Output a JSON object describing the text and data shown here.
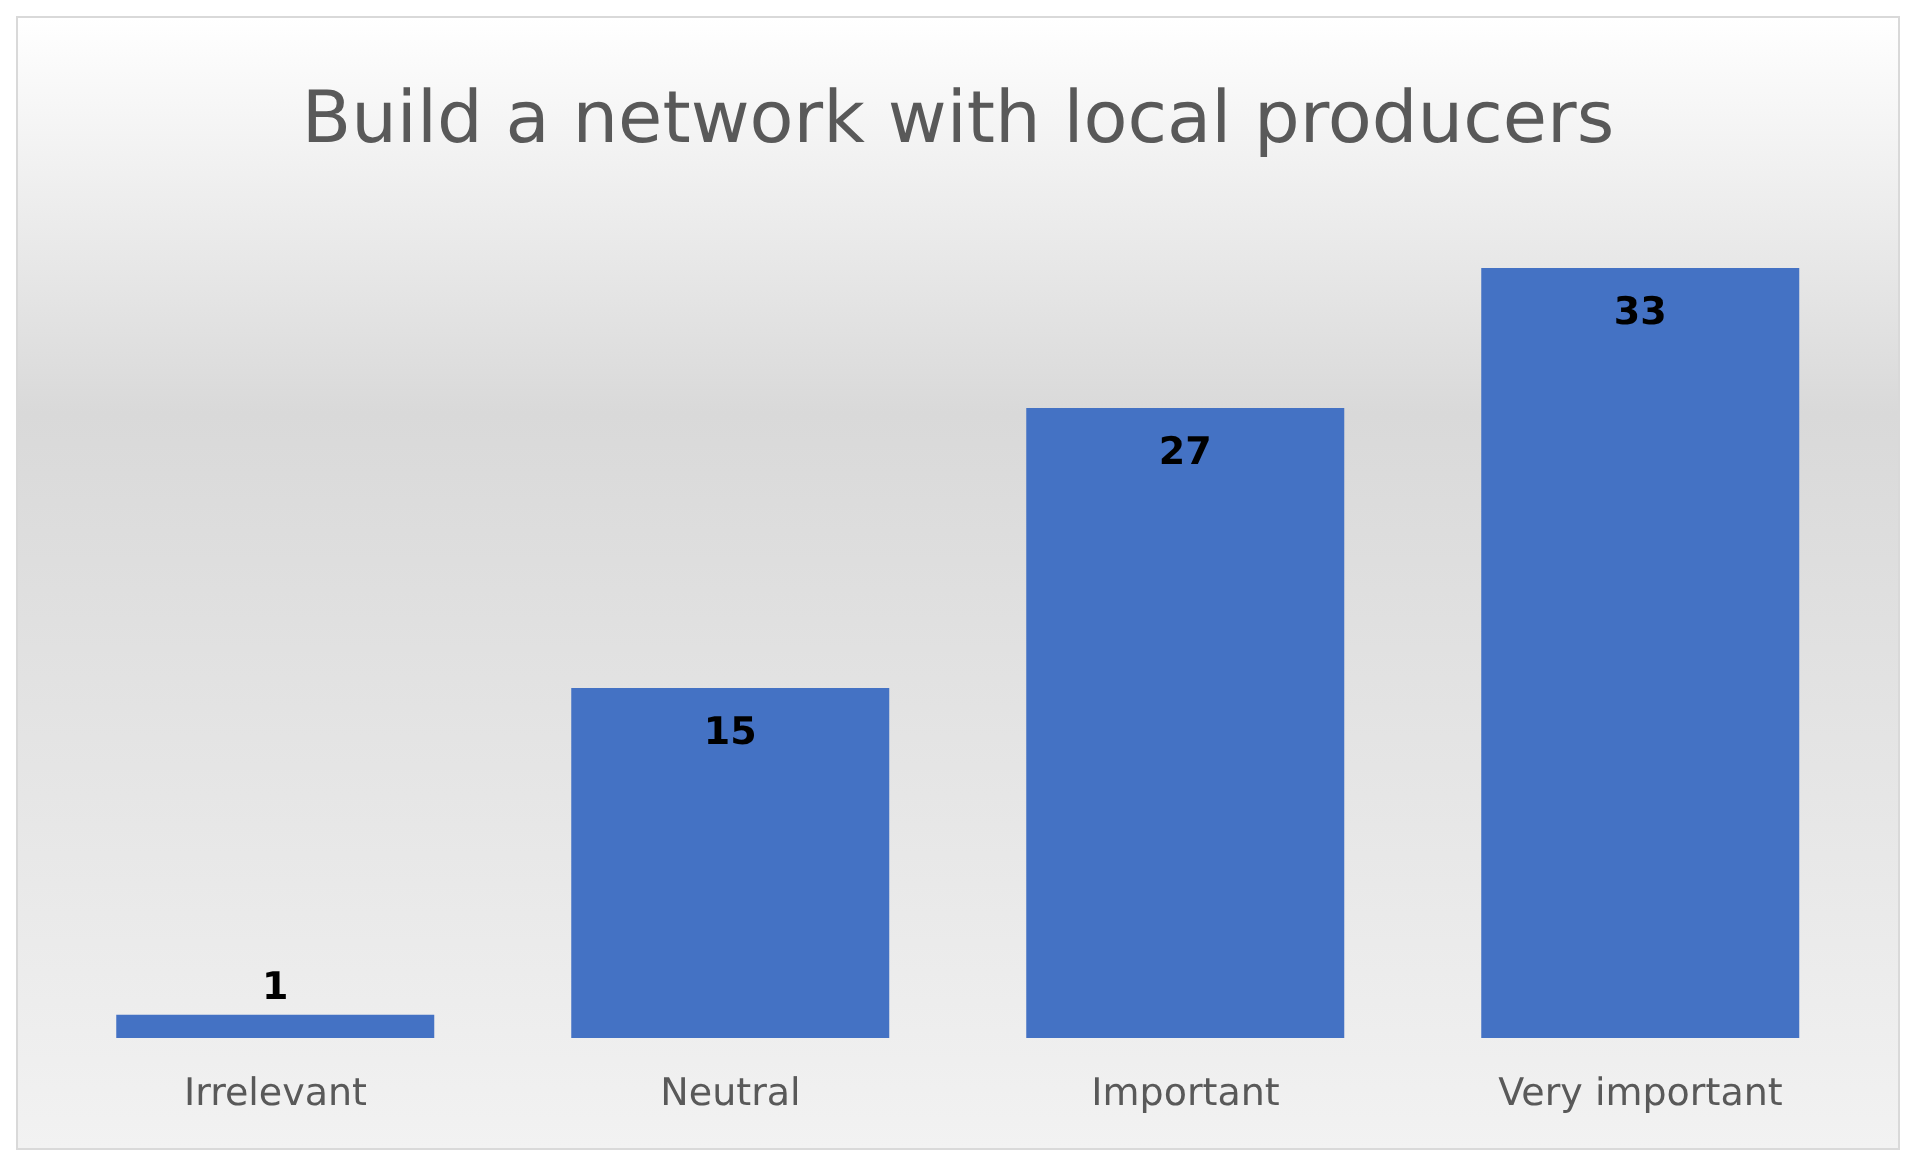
{
  "chart_data": {
    "type": "bar",
    "title": "Build a network with local producers",
    "categories": [
      "Irrelevant",
      "Neutral",
      "Important",
      "Very important"
    ],
    "values": [
      1,
      15,
      27,
      33
    ],
    "color": "#4472c4",
    "data_labels": true
  }
}
